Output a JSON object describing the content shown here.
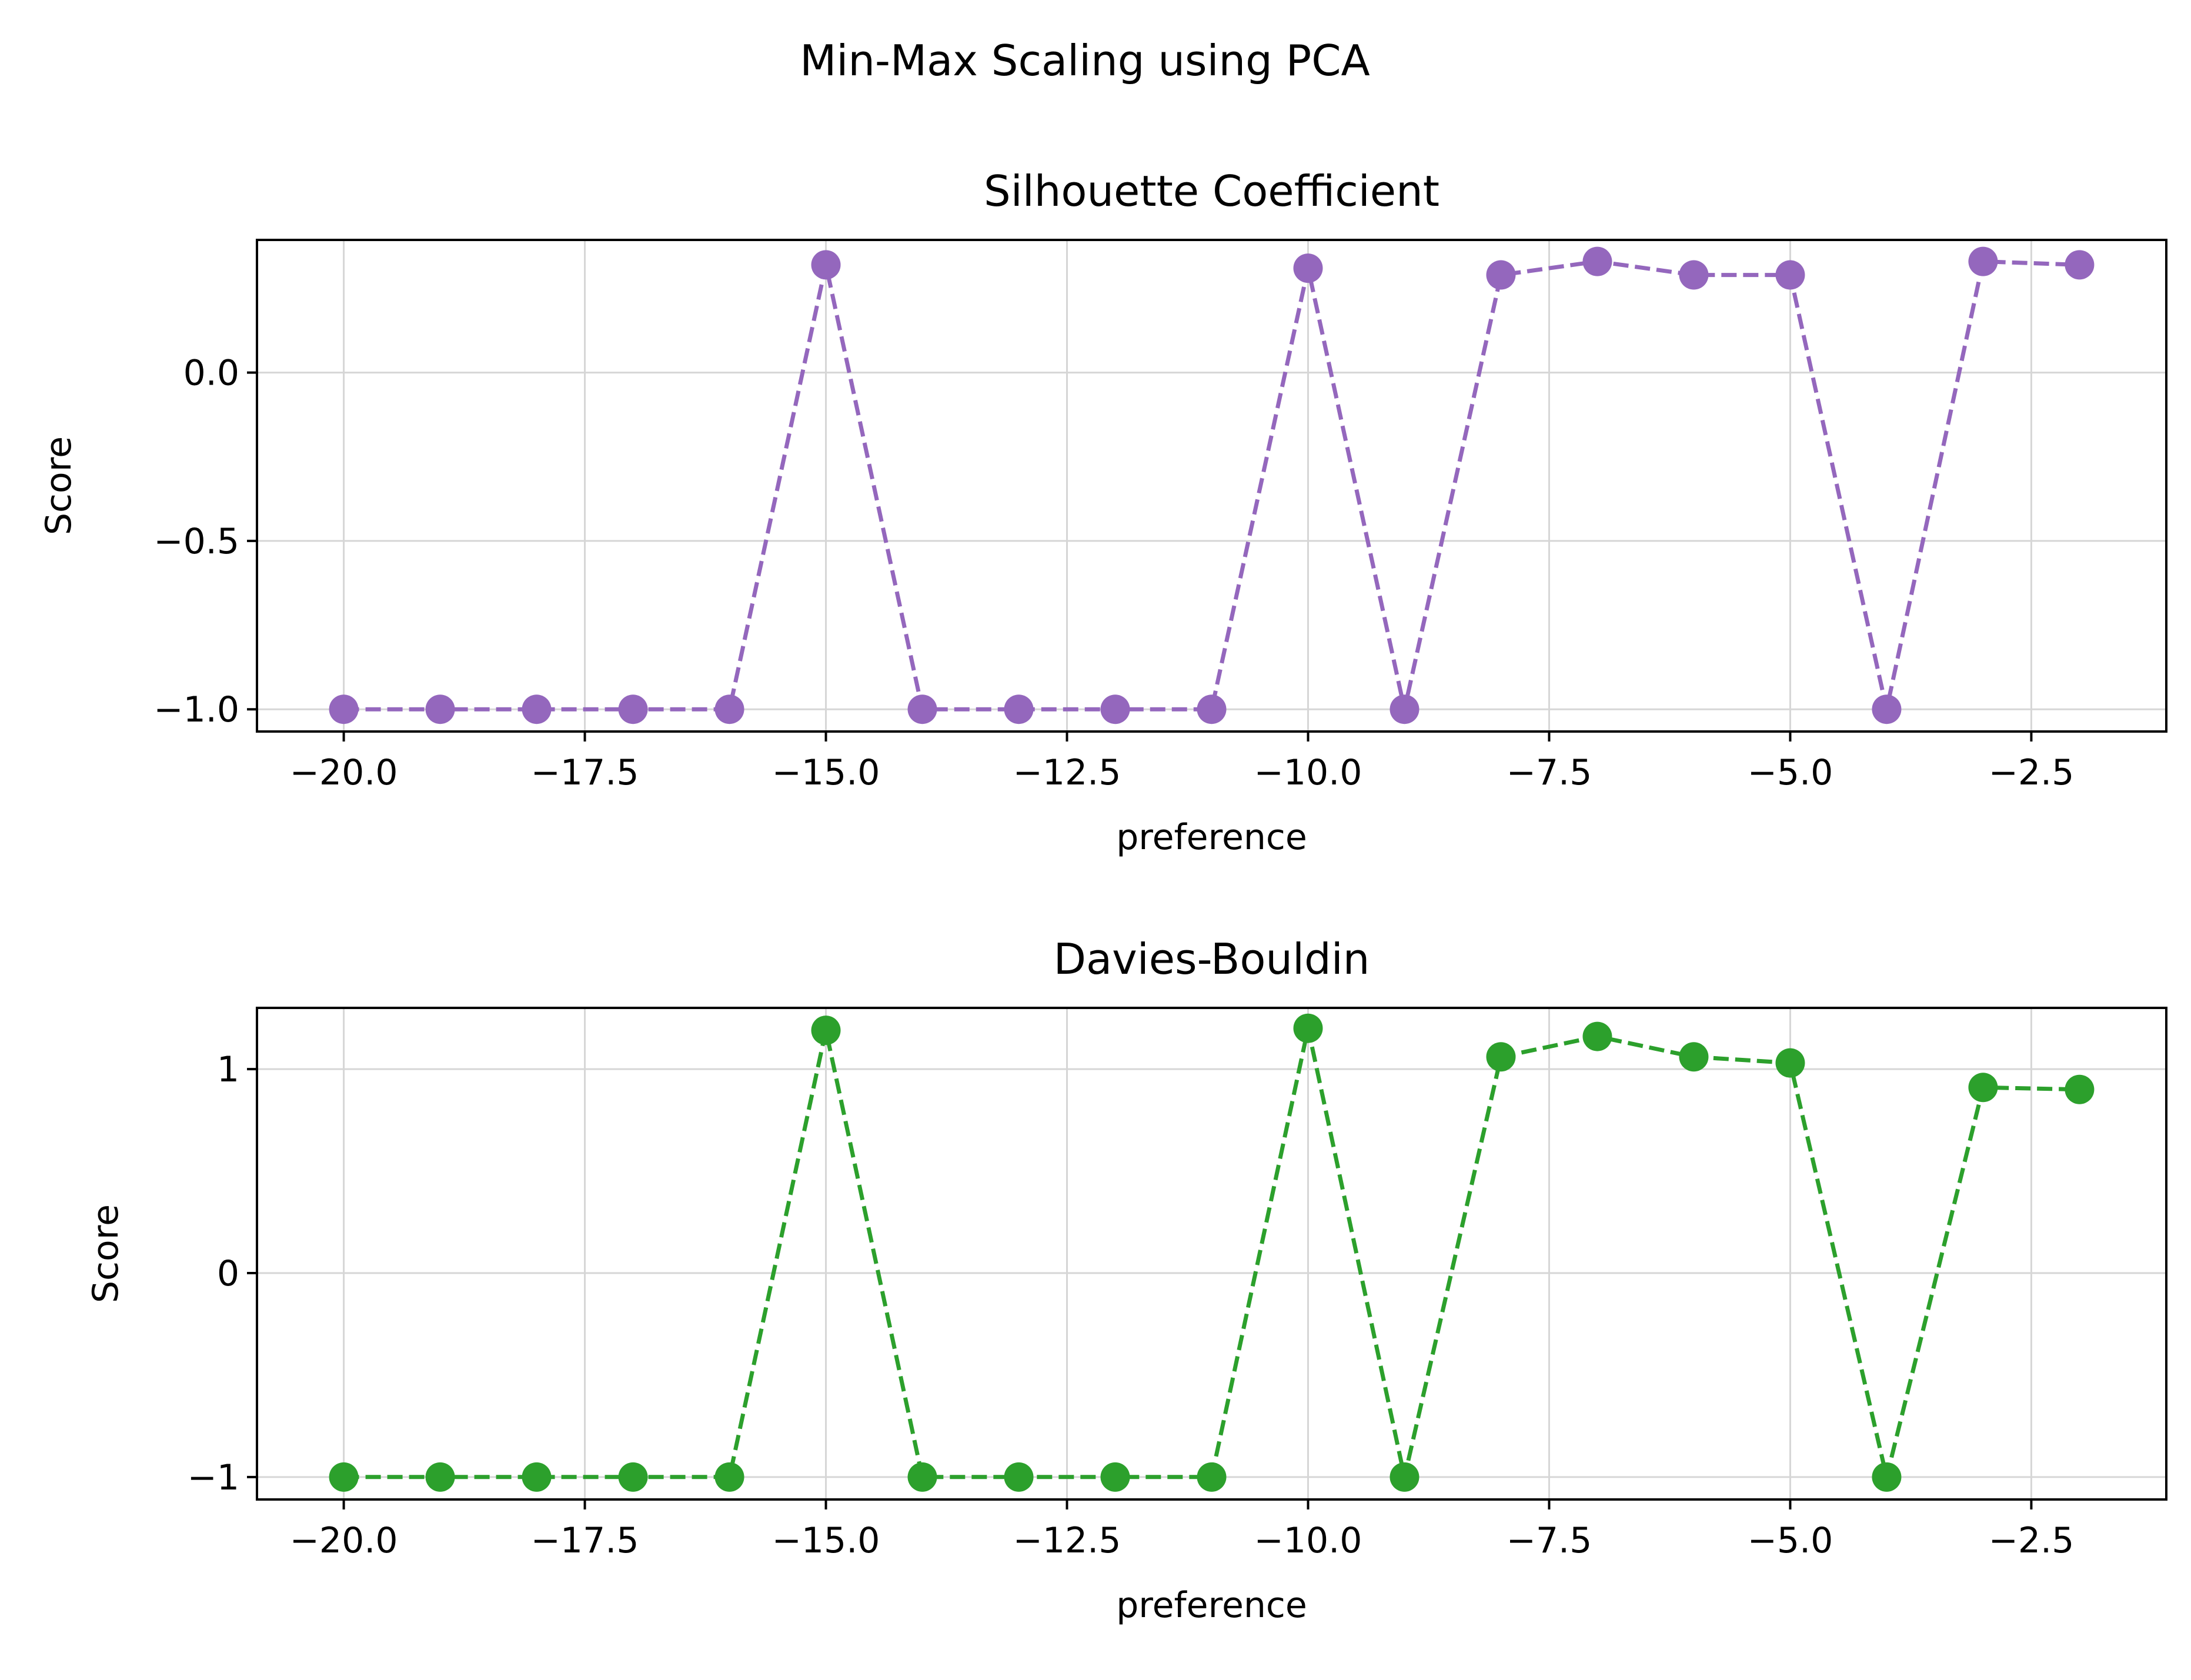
{
  "figure": {
    "suptitle": "Min-Max Scaling using PCA"
  },
  "chart_data": [
    {
      "type": "line",
      "title": "Silhouette Coefficient",
      "xlabel": "preference",
      "ylabel": "Score",
      "xlim": [
        -20.9,
        -1.1
      ],
      "ylim": [
        -1.066,
        0.394
      ],
      "xticks": [
        -20.0,
        -17.5,
        -15.0,
        -12.5,
        -10.0,
        -7.5,
        -5.0,
        -2.5
      ],
      "xtick_labels": [
        "−20.0",
        "−17.5",
        "−15.0",
        "−12.5",
        "−10.0",
        "−7.5",
        "−5.0",
        "−2.5"
      ],
      "yticks": [
        -1.0,
        -0.5,
        0.0
      ],
      "ytick_labels": [
        "−1.0",
        "−0.5",
        "0.0"
      ],
      "grid": true,
      "series": [
        {
          "name": "Silhouette Coefficient",
          "color": "#9467bd",
          "linestyle": "dashed",
          "marker": "circle",
          "x": [
            -20,
            -19,
            -18,
            -17,
            -16,
            -15,
            -14,
            -13,
            -12,
            -11,
            -10,
            -9,
            -8,
            -7,
            -6,
            -5,
            -4,
            -3,
            -2
          ],
          "y": [
            -1.0,
            -1.0,
            -1.0,
            -1.0,
            -1.0,
            0.32,
            -1.0,
            -1.0,
            -1.0,
            -1.0,
            0.31,
            -1.0,
            0.29,
            0.33,
            0.29,
            0.29,
            -1.0,
            0.33,
            0.32
          ]
        }
      ]
    },
    {
      "type": "line",
      "title": "Davies-Bouldin",
      "xlabel": "preference",
      "ylabel": "Score",
      "xlim": [
        -20.9,
        -1.1
      ],
      "ylim": [
        -1.11,
        1.3
      ],
      "xticks": [
        -20.0,
        -17.5,
        -15.0,
        -12.5,
        -10.0,
        -7.5,
        -5.0,
        -2.5
      ],
      "xtick_labels": [
        "−20.0",
        "−17.5",
        "−15.0",
        "−12.5",
        "−10.0",
        "−7.5",
        "−5.0",
        "−2.5"
      ],
      "yticks": [
        -1,
        0,
        1
      ],
      "ytick_labels": [
        "−1",
        "0",
        "1"
      ],
      "grid": true,
      "series": [
        {
          "name": "Davies-Bouldin",
          "color": "#2ca02c",
          "linestyle": "dashed",
          "marker": "circle",
          "x": [
            -20,
            -19,
            -18,
            -17,
            -16,
            -15,
            -14,
            -13,
            -12,
            -11,
            -10,
            -9,
            -8,
            -7,
            -6,
            -5,
            -4,
            -3,
            -2
          ],
          "y": [
            -1.0,
            -1.0,
            -1.0,
            -1.0,
            -1.0,
            1.19,
            -1.0,
            -1.0,
            -1.0,
            -1.0,
            1.2,
            -1.0,
            1.06,
            1.16,
            1.06,
            1.03,
            -1.0,
            0.91,
            0.9
          ]
        }
      ]
    }
  ]
}
